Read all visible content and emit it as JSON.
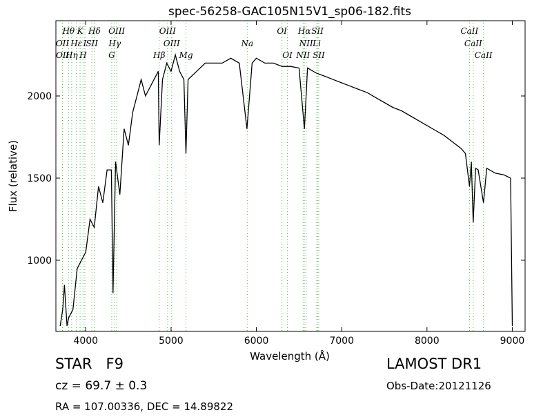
{
  "chart_data": {
    "type": "line",
    "title": "spec-56258-GAC105N15V1_sp06-182.fits",
    "x_label": "Wavelength (Å)",
    "y_label": "Flux (relative)",
    "xlim": [
      3650,
      9150
    ],
    "ylim": [
      567,
      2458
    ],
    "xticks": [
      4000,
      5000,
      6000,
      7000,
      8000,
      9000
    ],
    "yticks": [
      1000,
      1500,
      2000
    ],
    "x": [
      3700,
      3730,
      3750,
      3780,
      3800,
      3850,
      3900,
      3950,
      4000,
      4050,
      4100,
      4150,
      4200,
      4250,
      4300,
      4320,
      4350,
      4400,
      4450,
      4500,
      4550,
      4600,
      4650,
      4700,
      4750,
      4800,
      4850,
      4861,
      4900,
      4950,
      5000,
      5050,
      5100,
      5150,
      5175,
      5200,
      5300,
      5400,
      5500,
      5600,
      5700,
      5800,
      5890,
      5950,
      6000,
      6100,
      6200,
      6300,
      6400,
      6500,
      6563,
      6600,
      6700,
      6800,
      6900,
      7000,
      7100,
      7200,
      7300,
      7400,
      7500,
      7600,
      7700,
      7800,
      7900,
      8000,
      8100,
      8200,
      8300,
      8400,
      8450,
      8498,
      8520,
      8542,
      8570,
      8600,
      8662,
      8700,
      8800,
      8900,
      8980,
      9000
    ],
    "series": [
      {
        "name": "flux",
        "color": "#000000",
        "values": [
          600,
          700,
          850,
          600,
          650,
          700,
          950,
          1000,
          1050,
          1250,
          1200,
          1450,
          1350,
          1550,
          1550,
          800,
          1600,
          1400,
          1800,
          1700,
          1900,
          2000,
          2100,
          2000,
          2050,
          2100,
          2150,
          1700,
          2100,
          2200,
          2150,
          2250,
          2150,
          2100,
          1650,
          2100,
          2150,
          2200,
          2200,
          2200,
          2230,
          2200,
          1800,
          2200,
          2230,
          2200,
          2200,
          2180,
          2180,
          2170,
          1800,
          2170,
          2140,
          2120,
          2100,
          2080,
          2060,
          2040,
          2020,
          1990,
          1960,
          1930,
          1910,
          1880,
          1850,
          1820,
          1790,
          1760,
          1720,
          1680,
          1650,
          1450,
          1600,
          1230,
          1560,
          1550,
          1350,
          1560,
          1530,
          1520,
          1500,
          600
        ]
      }
    ],
    "line_color": "#55bb55",
    "line_labels": [
      [
        {
          "label": "Hθ",
          "x": 3798
        },
        {
          "label": "K",
          "x": 3934
        },
        {
          "label": "Hδ",
          "x": 4102
        },
        {
          "label": "OIII",
          "x": 4363
        },
        {
          "label": "OIII",
          "x": 4959
        },
        {
          "label": "OI",
          "x": 6300
        },
        {
          "label": "Hα",
          "x": 6563
        },
        {
          "label": "SII",
          "x": 6716
        },
        {
          "label": "CaII",
          "x": 8498
        }
      ],
      [
        {
          "label": "OII",
          "x": 3727
        },
        {
          "label": "Hε",
          "x": 3890
        },
        {
          "label": "I",
          "x": 3990
        },
        {
          "label": "SII",
          "x": 4072
        },
        {
          "label": "Hγ",
          "x": 4340
        },
        {
          "label": "OIII",
          "x": 5007
        },
        {
          "label": "Na",
          "x": 5893
        },
        {
          "label": "NII",
          "x": 6583
        },
        {
          "label": "Li",
          "x": 6708
        },
        {
          "label": "CaII",
          "x": 8542
        }
      ],
      [
        {
          "label": "OII",
          "x": 3729
        },
        {
          "label": "Hη",
          "x": 3835
        },
        {
          "label": "H",
          "x": 3968
        },
        {
          "label": "G",
          "x": 4305
        },
        {
          "label": "Hβ",
          "x": 4861
        },
        {
          "label": "Mg",
          "x": 5175
        },
        {
          "label": "OI",
          "x": 6364
        },
        {
          "label": "NII",
          "x": 6548
        },
        {
          "label": "SII",
          "x": 6731
        },
        {
          "label": "CaII",
          "x": 8662
        }
      ]
    ]
  },
  "info": {
    "object": "STAR   F9",
    "redshift": "cz = 69.7 ± 0.3",
    "coords": "RA = 107.00336, DEC = 14.89822",
    "survey": "LAMOST DR1",
    "date": "Obs-Date:20121126"
  }
}
